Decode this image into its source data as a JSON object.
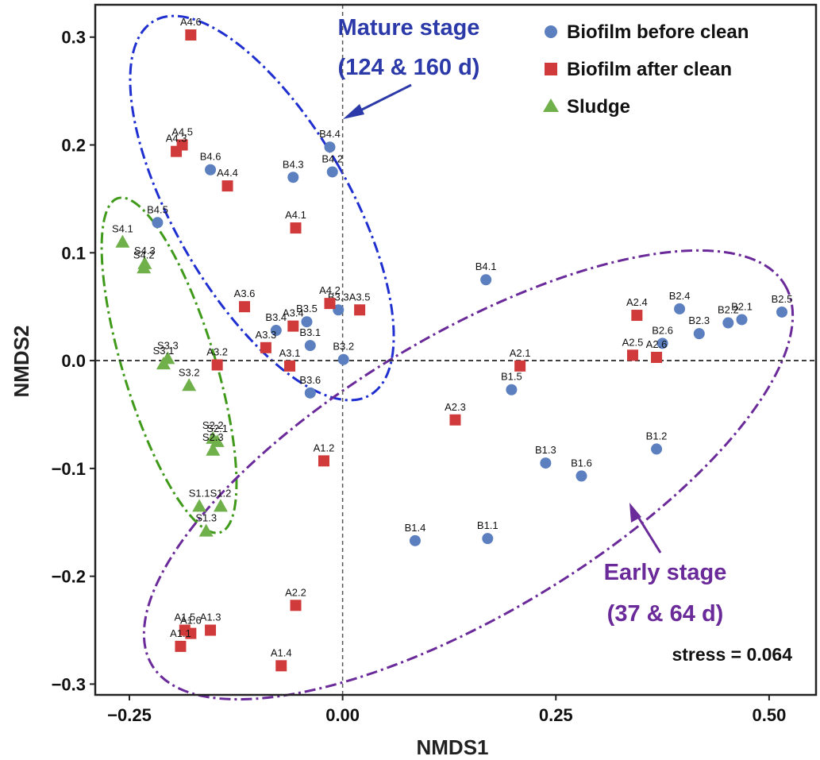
{
  "chart_data": {
    "type": "scatter",
    "xlabel": "NMDS1",
    "ylabel": "NMDS2",
    "xlim": [
      -0.29,
      0.555
    ],
    "ylim": [
      -0.31,
      0.33
    ],
    "x_ticks": [
      -0.25,
      0.0,
      0.25,
      0.5
    ],
    "x_tick_labels": [
      "-0.25",
      "0.00",
      "0.25",
      "0.50"
    ],
    "y_ticks": [
      -0.3,
      -0.2,
      -0.1,
      0.0,
      0.1,
      0.2,
      0.3
    ],
    "y_tick_labels": [
      "-0.3",
      "-0.2",
      "-0.1",
      "0.0",
      "0.1",
      "0.2",
      "0.3"
    ],
    "grid": false,
    "reference_lines": {
      "x": 0,
      "y": 0
    },
    "legend_position": "top-right",
    "stress_label": "stress = 0.064",
    "annotations": [
      {
        "lines": [
          "Mature stage",
          "(124 & 160 d)"
        ],
        "color": "#2b3aa8"
      },
      {
        "lines": [
          "Early stage",
          "(37 & 64 d)"
        ],
        "color": "#6a2a9a"
      }
    ],
    "series": [
      {
        "name": "Biofilm before clean",
        "marker": "circle",
        "color": "#5b7fbf",
        "points": [
          {
            "label": "B4.4",
            "x": -0.015,
            "y": 0.198
          },
          {
            "label": "B4.2",
            "x": -0.012,
            "y": 0.175
          },
          {
            "label": "B4.3",
            "x": -0.058,
            "y": 0.17
          },
          {
            "label": "B4.6",
            "x": -0.155,
            "y": 0.177
          },
          {
            "label": "B4.5",
            "x": -0.217,
            "y": 0.128
          },
          {
            "label": "B4.1",
            "x": 0.168,
            "y": 0.075
          },
          {
            "label": "B3.4",
            "x": -0.078,
            "y": 0.028
          },
          {
            "label": "B3.5",
            "x": -0.042,
            "y": 0.036
          },
          {
            "label": "B3.3",
            "x": -0.005,
            "y": 0.047
          },
          {
            "label": "B3.1",
            "x": -0.038,
            "y": 0.014
          },
          {
            "label": "B3.2",
            "x": 0.001,
            "y": 0.001
          },
          {
            "label": "B3.6",
            "x": -0.038,
            "y": -0.03
          },
          {
            "label": "B2.4",
            "x": 0.395,
            "y": 0.048
          },
          {
            "label": "B2.5",
            "x": 0.515,
            "y": 0.045
          },
          {
            "label": "B2.2",
            "x": 0.452,
            "y": 0.035
          },
          {
            "label": "B2.1",
            "x": 0.468,
            "y": 0.038
          },
          {
            "label": "B2.3",
            "x": 0.418,
            "y": 0.025
          },
          {
            "label": "B2.6",
            "x": 0.375,
            "y": 0.016
          },
          {
            "label": "B1.5",
            "x": 0.198,
            "y": -0.027
          },
          {
            "label": "B1.2",
            "x": 0.368,
            "y": -0.082
          },
          {
            "label": "B1.3",
            "x": 0.238,
            "y": -0.095
          },
          {
            "label": "B1.6",
            "x": 0.28,
            "y": -0.107
          },
          {
            "label": "B1.4",
            "x": 0.085,
            "y": -0.167
          },
          {
            "label": "B1.1",
            "x": 0.17,
            "y": -0.165
          }
        ]
      },
      {
        "name": "Biofilm after clean",
        "marker": "square",
        "color": "#d03a3a",
        "points": [
          {
            "label": "A4.6",
            "x": -0.178,
            "y": 0.302
          },
          {
            "label": "A4.5",
            "x": -0.188,
            "y": 0.2
          },
          {
            "label": "A4.3",
            "x": -0.195,
            "y": 0.194
          },
          {
            "label": "A4.4",
            "x": -0.135,
            "y": 0.162
          },
          {
            "label": "A4.1",
            "x": -0.055,
            "y": 0.123
          },
          {
            "label": "A3.6",
            "x": -0.115,
            "y": 0.05
          },
          {
            "label": "A4.2",
            "x": -0.015,
            "y": 0.053
          },
          {
            "label": "A3.5",
            "x": 0.02,
            "y": 0.047
          },
          {
            "label": "A3.4",
            "x": -0.058,
            "y": 0.032
          },
          {
            "label": "A3.3",
            "x": -0.09,
            "y": 0.012
          },
          {
            "label": "A3.2",
            "x": -0.147,
            "y": -0.004
          },
          {
            "label": "A3.1",
            "x": -0.062,
            "y": -0.005
          },
          {
            "label": "A2.4",
            "x": 0.345,
            "y": 0.042
          },
          {
            "label": "A2.5",
            "x": 0.34,
            "y": 0.005
          },
          {
            "label": "A2.6",
            "x": 0.368,
            "y": 0.003
          },
          {
            "label": "A2.1",
            "x": 0.208,
            "y": -0.005
          },
          {
            "label": "A2.3",
            "x": 0.132,
            "y": -0.055
          },
          {
            "label": "A1.2",
            "x": -0.022,
            "y": -0.093
          },
          {
            "label": "A2.2",
            "x": -0.055,
            "y": -0.227
          },
          {
            "label": "A1.5",
            "x": -0.185,
            "y": -0.25
          },
          {
            "label": "A1.3",
            "x": -0.155,
            "y": -0.25
          },
          {
            "label": "A1.6",
            "x": -0.178,
            "y": -0.253
          },
          {
            "label": "A1.1",
            "x": -0.19,
            "y": -0.265
          },
          {
            "label": "A1.4",
            "x": -0.072,
            "y": -0.283
          }
        ]
      },
      {
        "name": "Sludge",
        "marker": "triangle",
        "color": "#6fb04a",
        "points": [
          {
            "label": "S4.1",
            "x": -0.258,
            "y": 0.11
          },
          {
            "label": "S4.3",
            "x": -0.232,
            "y": 0.09
          },
          {
            "label": "S4.2",
            "x": -0.233,
            "y": 0.086
          },
          {
            "label": "S3.3",
            "x": -0.205,
            "y": 0.002
          },
          {
            "label": "S3.1",
            "x": -0.21,
            "y": -0.003
          },
          {
            "label": "S3.2",
            "x": -0.18,
            "y": -0.023
          },
          {
            "label": "S2.2",
            "x": -0.152,
            "y": -0.072
          },
          {
            "label": "S2.1",
            "x": -0.147,
            "y": -0.075
          },
          {
            "label": "S2.3",
            "x": -0.152,
            "y": -0.083
          },
          {
            "label": "S1.1",
            "x": -0.168,
            "y": -0.135
          },
          {
            "label": "S1.2",
            "x": -0.143,
            "y": -0.135
          },
          {
            "label": "S1.3",
            "x": -0.16,
            "y": -0.158
          }
        ]
      }
    ]
  }
}
